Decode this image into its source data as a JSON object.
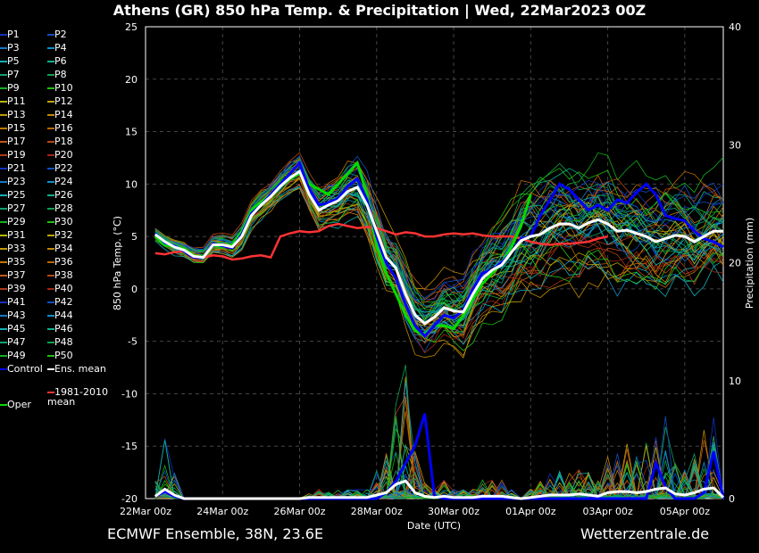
{
  "title": "Athens  (GR)  850 hPa Temp. & Precipitation | Wed, 22Mar2023 00Z",
  "footer_left": "ECMWF Ensemble, 38N, 23.6E",
  "footer_right": "Wetterzentrale.de",
  "legend": {
    "members": [
      "P1",
      "P2",
      "P3",
      "P4",
      "P5",
      "P6",
      "P7",
      "P8",
      "P9",
      "P10",
      "P11",
      "P12",
      "P13",
      "P14",
      "P15",
      "P16",
      "P17",
      "P18",
      "P19",
      "P20",
      "P21",
      "P22",
      "P23",
      "P24",
      "P25",
      "P26",
      "P27",
      "P28",
      "P29",
      "P30",
      "P31",
      "P32",
      "P33",
      "P34",
      "P35",
      "P36",
      "P37",
      "P38",
      "P39",
      "P40",
      "P41",
      "P42",
      "P43",
      "P44",
      "P45",
      "P46",
      "P47",
      "P48",
      "P49",
      "P50"
    ],
    "control": "Control",
    "ens_mean": "Ens. mean",
    "oper": "Oper",
    "climate": "1981-2010 mean"
  },
  "colors": {
    "control": "#0000ff",
    "ens_mean": "#ffffff",
    "oper": "#00dd00",
    "climate": "#ff3333",
    "members": [
      "#1030c0",
      "#1050c0",
      "#1078c8",
      "#1090c8",
      "#10b0b8",
      "#10b090",
      "#10a070",
      "#10a050",
      "#10b020",
      "#20c010",
      "#b8b800",
      "#c0a800",
      "#c09800",
      "#c08800",
      "#c07800",
      "#b86800",
      "#c05818",
      "#b84818",
      "#b03818",
      "#a02810"
    ]
  },
  "chart_data": {
    "type": "line",
    "title": "850 hPa Temp. & Precipitation",
    "xlabel": "Date (UTC)",
    "ylabel": "850 hPa Temp. (°C)",
    "y2label": "Precipitation (mm)",
    "ylim": [
      -20,
      25
    ],
    "y2lim": [
      0,
      40
    ],
    "yticks": [
      25,
      20,
      15,
      10,
      5,
      0,
      -5,
      -10,
      -15,
      -20
    ],
    "y2ticks": [
      40,
      30,
      20,
      10,
      0
    ],
    "xlim_hours": [
      0,
      360
    ],
    "xticks": [
      {
        "h": 0,
        "label": "22Mar 00z"
      },
      {
        "h": 48,
        "label": "24Mar 00z"
      },
      {
        "h": 96,
        "label": "26Mar 00z"
      },
      {
        "h": 144,
        "label": "28Mar 00z"
      },
      {
        "h": 192,
        "label": "30Mar 00z"
      },
      {
        "h": 240,
        "label": "01Apr 00z"
      },
      {
        "h": 288,
        "label": "03Apr 00z"
      },
      {
        "h": 336,
        "label": "05Apr 00z"
      }
    ],
    "grid": true,
    "step_hours": 6,
    "start_hour": 6,
    "ens_mean": [
      5.2,
      4.5,
      4.0,
      3.7,
      3.1,
      3.0,
      4.2,
      4.2,
      4.0,
      5.0,
      7.0,
      8.0,
      8.8,
      9.8,
      10.6,
      11.2,
      9.0,
      7.5,
      8.0,
      8.4,
      9.3,
      9.7,
      8.0,
      5.5,
      3.0,
      2.0,
      -0.5,
      -2.5,
      -3.3,
      -2.7,
      -1.8,
      -2.1,
      -2.2,
      -0.5,
      1.0,
      1.8,
      2.3,
      3.5,
      4.6,
      5.0,
      5.2,
      5.8,
      6.2,
      6.2,
      5.8,
      6.3,
      6.6,
      6.2,
      5.5,
      5.6,
      5.3,
      5.0,
      4.5,
      4.8,
      5.1,
      5.0,
      4.5,
      5.0,
      5.5,
      5.5
    ],
    "control": [
      5.3,
      4.4,
      4.1,
      3.6,
      3.0,
      3.0,
      4.3,
      4.1,
      3.9,
      5.2,
      7.2,
      8.0,
      9.0,
      10.0,
      11.0,
      12.0,
      9.5,
      8.0,
      8.2,
      8.6,
      9.8,
      10.5,
      8.5,
      5.0,
      2.5,
      1.0,
      -1.5,
      -3.5,
      -4.5,
      -3.5,
      -2.5,
      -2.8,
      -2.0,
      0.0,
      1.5,
      1.8,
      2.5,
      3.5,
      4.8,
      5.0,
      7.0,
      8.5,
      10.0,
      9.5,
      8.5,
      7.5,
      8.0,
      7.5,
      8.5,
      8.2,
      9.2,
      10.0,
      9.0,
      7.0,
      6.7,
      6.5,
      5.5,
      4.8,
      4.5,
      4.0
    ],
    "oper": [
      5.0,
      4.2,
      4.0,
      3.8,
      3.2,
      3.0,
      4.2,
      4.0,
      4.2,
      5.5,
      7.5,
      8.3,
      9.0,
      10.0,
      10.5,
      11.0,
      10.0,
      9.5,
      9.0,
      10.0,
      11.0,
      12.0,
      9.0,
      4.0,
      1.5,
      -0.5,
      -2.5,
      -4.0,
      -4.3,
      -3.5,
      -3.5,
      -3.8,
      -2.5,
      -1.0,
      0.5,
      1.5,
      2.5,
      4.0,
      6.0,
      9.0
    ],
    "climate": [
      3.4,
      3.3,
      3.5,
      3.6,
      3.3,
      3.0,
      3.2,
      3.1,
      2.8,
      2.9,
      3.1,
      3.2,
      3.0,
      5.0,
      5.3,
      5.5,
      5.4,
      5.5,
      6.0,
      6.2,
      6.0,
      5.8,
      5.9,
      5.8,
      5.5,
      5.2,
      5.4,
      5.3,
      5.0,
      5.0,
      5.2,
      5.3,
      5.2,
      5.3,
      5.1,
      5.0,
      5.0,
      5.0,
      4.8,
      4.5,
      4.3,
      4.2,
      4.3,
      4.3,
      4.4,
      4.5,
      4.8,
      5.0
    ],
    "member_spread": [
      0.6,
      0.6,
      0.7,
      0.7,
      0.8,
      0.8,
      0.8,
      0.9,
      0.9,
      1.0,
      1.0,
      1.1,
      1.1,
      1.2,
      1.3,
      1.4,
      1.6,
      1.8,
      2.0,
      2.2,
      2.4,
      2.6,
      2.8,
      3.0,
      3.0,
      3.0,
      3.0,
      3.0,
      3.0,
      3.0,
      3.2,
      3.4,
      3.6,
      3.8,
      4.0,
      4.2,
      4.4,
      4.6,
      4.8,
      5.0,
      5.0,
      5.0,
      5.0,
      5.0,
      5.0,
      5.0,
      5.0,
      5.0,
      5.0,
      5.0,
      5.0,
      5.0,
      5.0,
      5.0,
      5.0,
      5.0,
      5.0,
      5.0,
      5.0,
      5.0
    ],
    "precip_ens_mean": [
      0.2,
      0.8,
      0.3,
      0.0,
      0.0,
      0.0,
      0.0,
      0.0,
      0.0,
      0.0,
      0.0,
      0.0,
      0.0,
      0.0,
      0.0,
      0.0,
      0.1,
      0.1,
      0.1,
      0.1,
      0.1,
      0.1,
      0.1,
      0.3,
      0.5,
      1.2,
      1.5,
      0.5,
      0.2,
      0.1,
      0.2,
      0.1,
      0.1,
      0.1,
      0.2,
      0.2,
      0.2,
      0.1,
      0.0,
      0.1,
      0.2,
      0.3,
      0.3,
      0.3,
      0.4,
      0.3,
      0.2,
      0.5,
      0.6,
      0.6,
      0.5,
      0.6,
      0.8,
      0.9,
      0.4,
      0.3,
      0.5,
      0.8,
      0.9,
      0.1
    ],
    "precip_control": [
      0.2,
      0.6,
      0.2,
      0.0,
      0.0,
      0.0,
      0.0,
      0.0,
      0.0,
      0.0,
      0.0,
      0.0,
      0.0,
      0.0,
      0.0,
      0.0,
      0.0,
      0.0,
      0.0,
      0.0,
      0.0,
      0.0,
      0.0,
      0.0,
      0.5,
      1.5,
      3.0,
      4.5,
      7.2,
      0.2,
      0.0,
      0.0,
      0.0,
      0.0,
      0.0,
      0.0,
      0.0,
      0.0,
      0.0,
      0.0,
      0.0,
      0.0,
      0.0,
      0.0,
      0.0,
      0.0,
      0.0,
      0.0,
      0.0,
      0.0,
      0.0,
      0.0,
      3.0,
      1.0,
      0.0,
      0.0,
      0.0,
      0.5,
      4.0,
      0.0
    ]
  }
}
